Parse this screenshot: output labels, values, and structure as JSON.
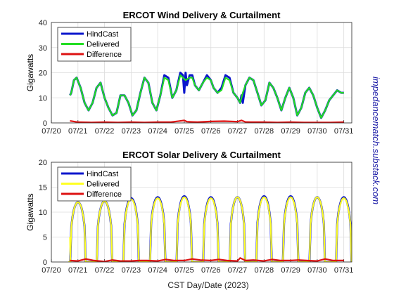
{
  "watermark": "impedancematch.substack.com",
  "xlabel": "CST Day/Date (2023)",
  "x_ticks": [
    "07/20",
    "07/21",
    "07/22",
    "07/23",
    "07/24",
    "07/25",
    "07/26",
    "07/27",
    "07/28",
    "07/29",
    "07/30",
    "07/31"
  ],
  "colors": {
    "hindcast": "#0b16cc",
    "delivered_wind": "#22dd22",
    "delivered_solar": "#ffff22",
    "difference": "#dd1111"
  },
  "chart_data": [
    {
      "type": "line",
      "title": "ERCOT Wind Delivery & Curtailment",
      "ylabel": "Gigawatts",
      "ylim": [
        0,
        40
      ],
      "yticks": [
        0,
        10,
        20,
        30,
        40
      ],
      "xlim": [
        0,
        11.3
      ],
      "grid": true,
      "legend": "top-left",
      "series": [
        {
          "name": "HindCast",
          "x": [
            0.7,
            0.75,
            0.85,
            0.95,
            1.1,
            1.25,
            1.4,
            1.55,
            1.7,
            1.85,
            2.0,
            2.15,
            2.3,
            2.45,
            2.6,
            2.75,
            2.9,
            3.05,
            3.2,
            3.35,
            3.5,
            3.65,
            3.8,
            3.95,
            4.1,
            4.25,
            4.4,
            4.55,
            4.7,
            4.85,
            4.95,
            5.0,
            5.05,
            5.1,
            5.2,
            5.3,
            5.4,
            5.55,
            5.7,
            5.85,
            6.0,
            6.1,
            6.25,
            6.4,
            6.55,
            6.7,
            6.85,
            7.0,
            7.1,
            7.15,
            7.2,
            7.3,
            7.45,
            7.6,
            7.75,
            7.9,
            8.05,
            8.2,
            8.35,
            8.5,
            8.65,
            8.8,
            8.95,
            9.1,
            9.25,
            9.4,
            9.55,
            9.7,
            9.85,
            10.0,
            10.15,
            10.3,
            10.45,
            10.6,
            10.75,
            10.9,
            11.0
          ],
          "values": [
            11,
            12,
            17,
            18,
            14,
            8,
            5,
            8,
            14,
            16,
            10,
            6,
            3,
            4,
            11,
            11,
            8,
            3,
            5,
            12,
            18,
            16,
            8,
            5,
            11,
            19,
            18,
            10,
            13,
            20,
            19,
            12,
            20,
            15,
            19,
            19,
            15,
            13,
            16,
            19,
            17,
            14,
            12,
            14,
            19,
            18,
            12,
            10,
            8,
            11,
            8,
            15,
            18,
            17,
            12,
            7,
            9,
            16,
            14,
            10,
            5,
            10,
            14,
            10,
            3,
            6,
            12,
            14,
            11,
            6,
            2,
            5,
            9,
            11,
            13,
            12,
            12
          ]
        },
        {
          "name": "Delivered",
          "x": [
            0.7,
            0.75,
            0.85,
            0.95,
            1.1,
            1.25,
            1.4,
            1.55,
            1.7,
            1.85,
            2.0,
            2.15,
            2.3,
            2.45,
            2.6,
            2.75,
            2.9,
            3.05,
            3.2,
            3.35,
            3.5,
            3.65,
            3.8,
            3.95,
            4.1,
            4.25,
            4.4,
            4.55,
            4.7,
            4.85,
            4.95,
            5.05,
            5.2,
            5.3,
            5.4,
            5.55,
            5.7,
            5.85,
            6.0,
            6.1,
            6.25,
            6.4,
            6.55,
            6.7,
            6.85,
            7.0,
            7.1,
            7.2,
            7.3,
            7.45,
            7.6,
            7.75,
            7.9,
            8.05,
            8.2,
            8.35,
            8.5,
            8.65,
            8.8,
            8.95,
            9.1,
            9.25,
            9.4,
            9.55,
            9.7,
            9.85,
            10.0,
            10.15,
            10.3,
            10.45,
            10.6,
            10.75,
            10.9,
            11.0
          ],
          "values": [
            11,
            12,
            17,
            18,
            14,
            8,
            5,
            8,
            14,
            16,
            10,
            6,
            3,
            4,
            11,
            11,
            8,
            3,
            5,
            12,
            18,
            16,
            8,
            5,
            11,
            18,
            17,
            10,
            13,
            19,
            18,
            17,
            18,
            18,
            15,
            13,
            16,
            18,
            17,
            14,
            12,
            13,
            18,
            17,
            12,
            10,
            8,
            12,
            15,
            18,
            17,
            12,
            7,
            9,
            16,
            14,
            10,
            5,
            10,
            14,
            10,
            3,
            6,
            12,
            14,
            11,
            6,
            2,
            5,
            9,
            11,
            13,
            12,
            12
          ]
        },
        {
          "name": "Difference",
          "x": [
            0.7,
            1.0,
            1.5,
            2.0,
            2.5,
            3.0,
            3.5,
            4.0,
            4.5,
            5.0,
            5.1,
            5.3,
            5.5,
            6.0,
            6.5,
            7.0,
            7.15,
            7.3,
            7.5,
            8.0,
            8.5,
            9.0,
            9.5,
            10.0,
            10.5,
            11.0
          ],
          "values": [
            0.8,
            0.3,
            0.2,
            0.3,
            0.2,
            0.3,
            0.2,
            0.3,
            0.3,
            1.0,
            0.5,
            0.4,
            0.3,
            0.6,
            0.7,
            0.5,
            1.0,
            0.4,
            0.3,
            0.3,
            0.2,
            0.3,
            0.2,
            0.2,
            0.2,
            0.3
          ]
        }
      ]
    },
    {
      "type": "line",
      "title": "ERCOT Solar Delivery & Curtailment",
      "ylabel": "Gigawatts",
      "ylim": [
        0,
        20
      ],
      "yticks": [
        0,
        5,
        10,
        15,
        20
      ],
      "xlim": [
        0,
        11.3
      ],
      "grid": true,
      "legend": "top-left",
      "series": [
        {
          "name": "HindCast",
          "peaks": [
            12,
            12.2,
            12.8,
            13,
            13.2,
            13,
            13,
            13.2,
            13.2,
            13,
            13
          ]
        },
        {
          "name": "Delivered",
          "peaks": [
            12,
            12.2,
            12.6,
            12.8,
            13,
            12.8,
            13,
            13,
            13,
            13,
            12.8
          ]
        },
        {
          "name": "Difference",
          "x": [
            0.7,
            1.0,
            1.3,
            1.6,
            2.0,
            2.3,
            2.6,
            3.0,
            3.3,
            3.6,
            4.0,
            4.3,
            4.6,
            5.0,
            5.3,
            5.6,
            6.0,
            6.3,
            6.6,
            7.0,
            7.1,
            7.3,
            7.6,
            8.0,
            8.3,
            8.6,
            9.0,
            9.3,
            9.6,
            10.0,
            10.3,
            10.6,
            11.0
          ],
          "values": [
            0.3,
            0.2,
            0.6,
            0.3,
            0.1,
            0.4,
            0.2,
            0.2,
            0.3,
            0.3,
            0.2,
            0.5,
            0.3,
            0.3,
            0.6,
            0.4,
            0.3,
            0.5,
            0.3,
            0.2,
            0.8,
            0.3,
            0.4,
            0.2,
            0.5,
            0.3,
            0.3,
            0.4,
            0.3,
            0.2,
            0.6,
            0.3,
            0.3
          ]
        }
      ]
    }
  ]
}
